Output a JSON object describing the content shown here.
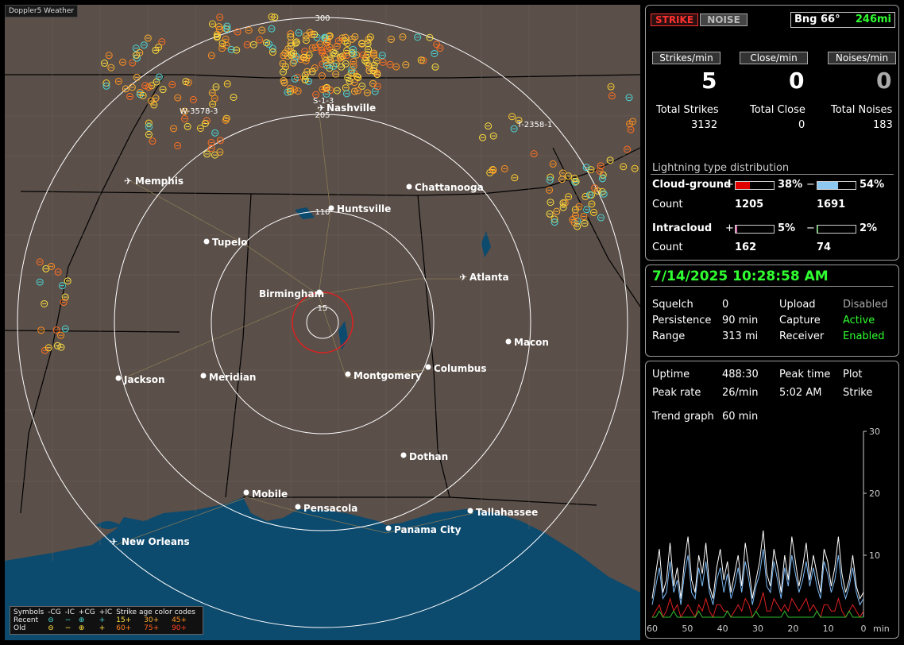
{
  "app": {
    "title": "Doppler5 Weather"
  },
  "map": {
    "ring_labels": [
      "15",
      "110",
      "205",
      "300"
    ],
    "cities": [
      {
        "name": "Nashville",
        "type": "airport"
      },
      {
        "name": "Memphis",
        "type": "airport"
      },
      {
        "name": "Chattanooga",
        "type": "city"
      },
      {
        "name": "Huntsville",
        "type": "city"
      },
      {
        "name": "Tupelo",
        "type": "city"
      },
      {
        "name": "Atlanta",
        "type": "airport"
      },
      {
        "name": "Birmingham",
        "type": "city"
      },
      {
        "name": "Macon",
        "type": "city"
      },
      {
        "name": "Jackson",
        "type": "city"
      },
      {
        "name": "Meridian",
        "type": "city"
      },
      {
        "name": "Montgomery",
        "type": "city"
      },
      {
        "name": "Columbus",
        "type": "city"
      },
      {
        "name": "Dothan",
        "type": "city"
      },
      {
        "name": "Mobile",
        "type": "city"
      },
      {
        "name": "Pensacola",
        "type": "city"
      },
      {
        "name": "Tallahassee",
        "type": "city"
      },
      {
        "name": "Panama City",
        "type": "city"
      },
      {
        "name": "New Orleans",
        "type": "airport"
      }
    ],
    "storm_labels": [
      "W-3578-3",
      "T-2358-1",
      "S-1-3"
    ],
    "colors": {
      "land": "#5a4f49",
      "water": "#0c4a6e",
      "ring": "#ffffff",
      "center_ring": "#e02020"
    }
  },
  "legend": {
    "symbols_label": "Symbols",
    "headers": [
      "-CG",
      "-IC",
      "+CG",
      "+IC"
    ],
    "age_title": "Strike age color codes",
    "rows": [
      {
        "label": "Recent",
        "ages": [
          "15+",
          "30+",
          "45+"
        ]
      },
      {
        "label": "Old",
        "ages": [
          "60+",
          "75+",
          "90+"
        ]
      }
    ]
  },
  "status": {
    "strike_label": "STRIKE",
    "noise_label": "NOISE",
    "bearing": "Bng 66°",
    "distance": "246mi"
  },
  "rates": {
    "strikes_label": "Strikes/min",
    "close_label": "Close/min",
    "noises_label": "Noises/min",
    "strikes_value": "5",
    "close_value": "0",
    "noises_value": "0"
  },
  "totals": {
    "strikes_label": "Total Strikes",
    "close_label": "Total Close",
    "noises_label": "Total Noises",
    "strikes": "3132",
    "close": "0",
    "noises": "183"
  },
  "distribution": {
    "title": "Lightning type distribution",
    "count_label": "Count",
    "cloud_ground": {
      "label": "Cloud-ground",
      "pos_pct": "38%",
      "neg_pct": "54%",
      "pos_count": "1205",
      "neg_count": "1691",
      "pos_fill": 0.38,
      "neg_fill": 0.54
    },
    "intracloud": {
      "label": "Intracloud",
      "pos_pct": "5%",
      "neg_pct": "2%",
      "pos_count": "162",
      "neg_count": "74",
      "pos_fill": 0.05,
      "neg_fill": 0.02
    },
    "plus": "+",
    "minus": "−"
  },
  "datetime": "7/14/2025 10:28:58 AM",
  "settings": {
    "squelch_label": "Squelch",
    "squelch": "0",
    "persistence_label": "Persistence",
    "persistence": "90 min",
    "range_label": "Range",
    "range": "313 mi",
    "upload_label": "Upload",
    "upload": "Disabled",
    "capture_label": "Capture",
    "capture": "Active",
    "receiver_label": "Receiver",
    "receiver": "Enabled"
  },
  "stats": {
    "uptime_label": "Uptime",
    "uptime": "488:30",
    "peak_time_label": "Peak time",
    "peak_time": "5:02 AM",
    "plot_label": "Plot",
    "plot": "Strike",
    "peak_rate_label": "Peak rate",
    "peak_rate": "26/min",
    "trend_label": "Trend graph",
    "trend": "60 min"
  },
  "chart_data": {
    "type": "line",
    "title": "",
    "xlabel": "min",
    "ylabel": "",
    "x_ticks": [
      "60",
      "50",
      "40",
      "30",
      "20",
      "10",
      "0"
    ],
    "y_ticks": [
      "10",
      "20",
      "30"
    ],
    "ylim": [
      0,
      30
    ],
    "xlim": [
      60,
      0
    ],
    "series": [
      {
        "color": "#ffffff",
        "values": [
          3,
          7,
          11,
          4,
          6,
          12,
          5,
          8,
          3,
          9,
          13,
          6,
          4,
          10,
          7,
          12,
          5,
          3,
          8,
          11,
          6,
          9,
          4,
          7,
          10,
          5,
          12,
          8,
          3,
          6,
          9,
          14,
          7,
          5,
          11,
          8,
          4,
          10,
          6,
          13,
          9,
          5,
          8,
          12,
          6,
          10,
          7,
          4,
          11,
          9,
          5,
          8,
          13,
          7,
          4,
          6,
          10,
          5,
          3,
          4
        ]
      },
      {
        "color": "#7ab8f5",
        "values": [
          2,
          5,
          8,
          3,
          4,
          9,
          4,
          6,
          2,
          7,
          10,
          4,
          3,
          8,
          5,
          9,
          4,
          2,
          6,
          8,
          4,
          7,
          3,
          5,
          8,
          4,
          9,
          6,
          2,
          5,
          7,
          11,
          5,
          4,
          9,
          6,
          3,
          8,
          5,
          10,
          7,
          4,
          6,
          9,
          5,
          8,
          5,
          3,
          9,
          7,
          4,
          6,
          10,
          5,
          3,
          5,
          8,
          4,
          2,
          3
        ]
      },
      {
        "color": "#e02020",
        "values": [
          0,
          1,
          2,
          0,
          1,
          3,
          1,
          2,
          0,
          1,
          2,
          1,
          0,
          2,
          1,
          3,
          1,
          0,
          2,
          2,
          1,
          1,
          0,
          1,
          2,
          1,
          3,
          2,
          0,
          1,
          2,
          4,
          1,
          1,
          3,
          2,
          1,
          2,
          1,
          3,
          2,
          1,
          2,
          3,
          1,
          2,
          1,
          0,
          2,
          2,
          1,
          1,
          3,
          1,
          0,
          1,
          2,
          1,
          0,
          1
        ]
      },
      {
        "color": "#30c030",
        "values": [
          0,
          0,
          1,
          0,
          0,
          0,
          1,
          0,
          0,
          0,
          0,
          0,
          0,
          1,
          0,
          0,
          0,
          0,
          0,
          0,
          0,
          1,
          0,
          0,
          0,
          0,
          0,
          0,
          0,
          1,
          0,
          0,
          0,
          0,
          0,
          0,
          0,
          1,
          0,
          0,
          0,
          0,
          0,
          0,
          0,
          0,
          1,
          0,
          0,
          0,
          0,
          0,
          0,
          0,
          0,
          1,
          0,
          0,
          0,
          0
        ]
      }
    ]
  }
}
